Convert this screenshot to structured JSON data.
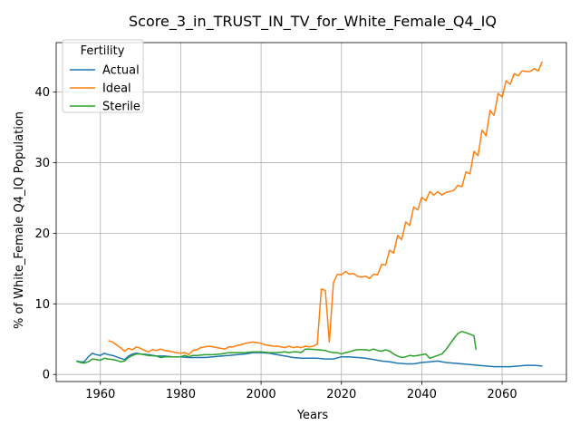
{
  "chart_data": {
    "type": "line",
    "title": "Score_3_in_TRUST_IN_TV_for_White_Female_Q4_IQ",
    "xlabel": "Years",
    "ylabel": "% of White_Female Q4_IQ Population",
    "xlim": [
      1949,
      2076
    ],
    "ylim": [
      -1,
      47
    ],
    "xticks": [
      1960,
      1980,
      2000,
      2020,
      2040,
      2060
    ],
    "yticks": [
      0,
      10,
      20,
      30,
      40
    ],
    "grid": true,
    "legend": {
      "title": "Fertility",
      "position": "top-left"
    },
    "series": [
      {
        "name": "Actual",
        "color": "#1f77b4",
        "points": [
          [
            1954,
            1.9
          ],
          [
            1955,
            1.8
          ],
          [
            1956,
            1.8
          ],
          [
            1957,
            2.5
          ],
          [
            1958,
            3.0
          ],
          [
            1959,
            2.8
          ],
          [
            1960,
            2.7
          ],
          [
            1961,
            3.0
          ],
          [
            1962,
            2.8
          ],
          [
            1963,
            2.7
          ],
          [
            1964,
            2.5
          ],
          [
            1965,
            2.3
          ],
          [
            1966,
            2.1
          ],
          [
            1967,
            2.6
          ],
          [
            1968,
            2.9
          ],
          [
            1969,
            3.0
          ],
          [
            1970,
            2.9
          ],
          [
            1972,
            2.8
          ],
          [
            1974,
            2.6
          ],
          [
            1976,
            2.6
          ],
          [
            1978,
            2.5
          ],
          [
            1980,
            2.5
          ],
          [
            1982,
            2.4
          ],
          [
            1984,
            2.4
          ],
          [
            1986,
            2.4
          ],
          [
            1988,
            2.5
          ],
          [
            1990,
            2.6
          ],
          [
            1992,
            2.7
          ],
          [
            1994,
            2.8
          ],
          [
            1996,
            2.9
          ],
          [
            1998,
            3.1
          ],
          [
            2000,
            3.1
          ],
          [
            2002,
            3.0
          ],
          [
            2004,
            2.8
          ],
          [
            2006,
            2.6
          ],
          [
            2008,
            2.4
          ],
          [
            2010,
            2.3
          ],
          [
            2012,
            2.3
          ],
          [
            2014,
            2.3
          ],
          [
            2016,
            2.2
          ],
          [
            2018,
            2.2
          ],
          [
            2020,
            2.5
          ],
          [
            2022,
            2.5
          ],
          [
            2024,
            2.4
          ],
          [
            2026,
            2.3
          ],
          [
            2028,
            2.1
          ],
          [
            2030,
            1.9
          ],
          [
            2032,
            1.8
          ],
          [
            2034,
            1.6
          ],
          [
            2036,
            1.5
          ],
          [
            2038,
            1.5
          ],
          [
            2040,
            1.7
          ],
          [
            2042,
            1.8
          ],
          [
            2044,
            1.9
          ],
          [
            2046,
            1.7
          ],
          [
            2048,
            1.6
          ],
          [
            2050,
            1.5
          ],
          [
            2052,
            1.4
          ],
          [
            2054,
            1.3
          ],
          [
            2056,
            1.2
          ],
          [
            2058,
            1.1
          ],
          [
            2060,
            1.1
          ],
          [
            2062,
            1.1
          ],
          [
            2064,
            1.2
          ],
          [
            2066,
            1.3
          ],
          [
            2068,
            1.3
          ],
          [
            2070,
            1.2
          ]
        ]
      },
      {
        "name": "Ideal",
        "color": "#ff7f0e",
        "points": [
          [
            1962,
            4.8
          ],
          [
            1963,
            4.6
          ],
          [
            1964,
            4.2
          ],
          [
            1965,
            3.8
          ],
          [
            1966,
            3.3
          ],
          [
            1967,
            3.7
          ],
          [
            1968,
            3.5
          ],
          [
            1969,
            3.9
          ],
          [
            1970,
            3.7
          ],
          [
            1971,
            3.4
          ],
          [
            1972,
            3.2
          ],
          [
            1973,
            3.5
          ],
          [
            1974,
            3.4
          ],
          [
            1975,
            3.6
          ],
          [
            1976,
            3.4
          ],
          [
            1977,
            3.3
          ],
          [
            1978,
            3.2
          ],
          [
            1979,
            3.1
          ],
          [
            1980,
            3.0
          ],
          [
            1981,
            3.1
          ],
          [
            1982,
            2.8
          ],
          [
            1983,
            3.4
          ],
          [
            1984,
            3.5
          ],
          [
            1985,
            3.8
          ],
          [
            1986,
            3.9
          ],
          [
            1987,
            4.0
          ],
          [
            1988,
            3.9
          ],
          [
            1989,
            3.8
          ],
          [
            1990,
            3.7
          ],
          [
            1991,
            3.6
          ],
          [
            1992,
            3.9
          ],
          [
            1993,
            3.9
          ],
          [
            1994,
            4.1
          ],
          [
            1995,
            4.2
          ],
          [
            1996,
            4.4
          ],
          [
            1997,
            4.5
          ],
          [
            1998,
            4.6
          ],
          [
            1999,
            4.5
          ],
          [
            2000,
            4.4
          ],
          [
            2001,
            4.2
          ],
          [
            2002,
            4.1
          ],
          [
            2003,
            4.0
          ],
          [
            2004,
            4.0
          ],
          [
            2005,
            3.9
          ],
          [
            2006,
            3.8
          ],
          [
            2007,
            4.0
          ],
          [
            2008,
            3.8
          ],
          [
            2009,
            3.9
          ],
          [
            2010,
            3.8
          ],
          [
            2011,
            4.0
          ],
          [
            2012,
            3.9
          ],
          [
            2013,
            4.0
          ],
          [
            2014,
            4.3
          ],
          [
            2015,
            12.1
          ],
          [
            2016,
            11.9
          ],
          [
            2017,
            4.6
          ],
          [
            2018,
            13.0
          ],
          [
            2019,
            14.2
          ],
          [
            2020,
            14.1
          ],
          [
            2021,
            14.6
          ],
          [
            2022,
            14.2
          ],
          [
            2023,
            14.3
          ],
          [
            2024,
            13.9
          ],
          [
            2025,
            13.8
          ],
          [
            2026,
            13.9
          ],
          [
            2027,
            13.6
          ],
          [
            2028,
            14.2
          ],
          [
            2029,
            14.1
          ],
          [
            2030,
            15.6
          ],
          [
            2031,
            15.5
          ],
          [
            2032,
            17.6
          ],
          [
            2033,
            17.2
          ],
          [
            2034,
            19.7
          ],
          [
            2035,
            19.1
          ],
          [
            2036,
            21.6
          ],
          [
            2037,
            21.1
          ],
          [
            2038,
            23.7
          ],
          [
            2039,
            23.3
          ],
          [
            2040,
            25.1
          ],
          [
            2041,
            24.6
          ],
          [
            2042,
            25.9
          ],
          [
            2043,
            25.4
          ],
          [
            2044,
            25.9
          ],
          [
            2045,
            25.4
          ],
          [
            2046,
            25.8
          ],
          [
            2047,
            25.9
          ],
          [
            2048,
            26.1
          ],
          [
            2049,
            26.8
          ],
          [
            2050,
            26.6
          ],
          [
            2051,
            28.7
          ],
          [
            2052,
            28.4
          ],
          [
            2053,
            31.6
          ],
          [
            2054,
            31.0
          ],
          [
            2055,
            34.6
          ],
          [
            2056,
            33.8
          ],
          [
            2057,
            37.4
          ],
          [
            2058,
            36.7
          ],
          [
            2059,
            39.8
          ],
          [
            2060,
            39.3
          ],
          [
            2061,
            41.6
          ],
          [
            2062,
            41.1
          ],
          [
            2063,
            42.6
          ],
          [
            2064,
            42.3
          ],
          [
            2065,
            43.0
          ],
          [
            2066,
            42.9
          ],
          [
            2067,
            42.9
          ],
          [
            2068,
            43.3
          ],
          [
            2069,
            43.0
          ],
          [
            2070,
            44.3
          ]
        ]
      },
      {
        "name": "Sterile",
        "color": "#2ca02c",
        "points": [
          [
            1954,
            1.9
          ],
          [
            1955,
            1.7
          ],
          [
            1956,
            1.6
          ],
          [
            1957,
            1.8
          ],
          [
            1958,
            2.2
          ],
          [
            1959,
            2.1
          ],
          [
            1960,
            2.0
          ],
          [
            1961,
            2.3
          ],
          [
            1962,
            2.2
          ],
          [
            1963,
            2.1
          ],
          [
            1964,
            2.0
          ],
          [
            1965,
            1.8
          ],
          [
            1966,
            1.9
          ],
          [
            1967,
            2.4
          ],
          [
            1968,
            2.7
          ],
          [
            1969,
            2.9
          ],
          [
            1970,
            2.9
          ],
          [
            1972,
            2.7
          ],
          [
            1974,
            2.6
          ],
          [
            1975,
            2.4
          ],
          [
            1976,
            2.5
          ],
          [
            1978,
            2.5
          ],
          [
            1980,
            2.5
          ],
          [
            1981,
            2.7
          ],
          [
            1982,
            2.5
          ],
          [
            1983,
            2.7
          ],
          [
            1984,
            2.7
          ],
          [
            1986,
            2.8
          ],
          [
            1988,
            2.8
          ],
          [
            1990,
            2.9
          ],
          [
            1992,
            3.1
          ],
          [
            1994,
            3.1
          ],
          [
            1996,
            3.1
          ],
          [
            1998,
            3.2
          ],
          [
            2000,
            3.2
          ],
          [
            2002,
            3.1
          ],
          [
            2004,
            3.1
          ],
          [
            2006,
            3.2
          ],
          [
            2007,
            3.1
          ],
          [
            2008,
            3.2
          ],
          [
            2009,
            3.2
          ],
          [
            2010,
            3.1
          ],
          [
            2011,
            3.6
          ],
          [
            2012,
            3.6
          ],
          [
            2014,
            3.5
          ],
          [
            2016,
            3.4
          ],
          [
            2017,
            3.2
          ],
          [
            2018,
            3.1
          ],
          [
            2019,
            3.1
          ],
          [
            2020,
            2.9
          ],
          [
            2021,
            3.1
          ],
          [
            2022,
            3.2
          ],
          [
            2023,
            3.4
          ],
          [
            2024,
            3.5
          ],
          [
            2026,
            3.5
          ],
          [
            2027,
            3.4
          ],
          [
            2028,
            3.6
          ],
          [
            2029,
            3.4
          ],
          [
            2030,
            3.3
          ],
          [
            2031,
            3.5
          ],
          [
            2032,
            3.3
          ],
          [
            2033,
            2.9
          ],
          [
            2034,
            2.6
          ],
          [
            2035,
            2.4
          ],
          [
            2036,
            2.5
          ],
          [
            2037,
            2.7
          ],
          [
            2038,
            2.6
          ],
          [
            2039,
            2.7
          ],
          [
            2040,
            2.8
          ],
          [
            2041,
            2.9
          ],
          [
            2042,
            2.3
          ],
          [
            2043,
            2.5
          ],
          [
            2044,
            2.7
          ],
          [
            2045,
            2.9
          ],
          [
            2046,
            3.5
          ],
          [
            2047,
            4.3
          ],
          [
            2048,
            5.1
          ],
          [
            2049,
            5.8
          ],
          [
            2050,
            6.1
          ],
          [
            2051,
            5.9
          ],
          [
            2052,
            5.7
          ],
          [
            2053,
            5.5
          ],
          [
            2053.5,
            3.5
          ]
        ]
      }
    ]
  }
}
